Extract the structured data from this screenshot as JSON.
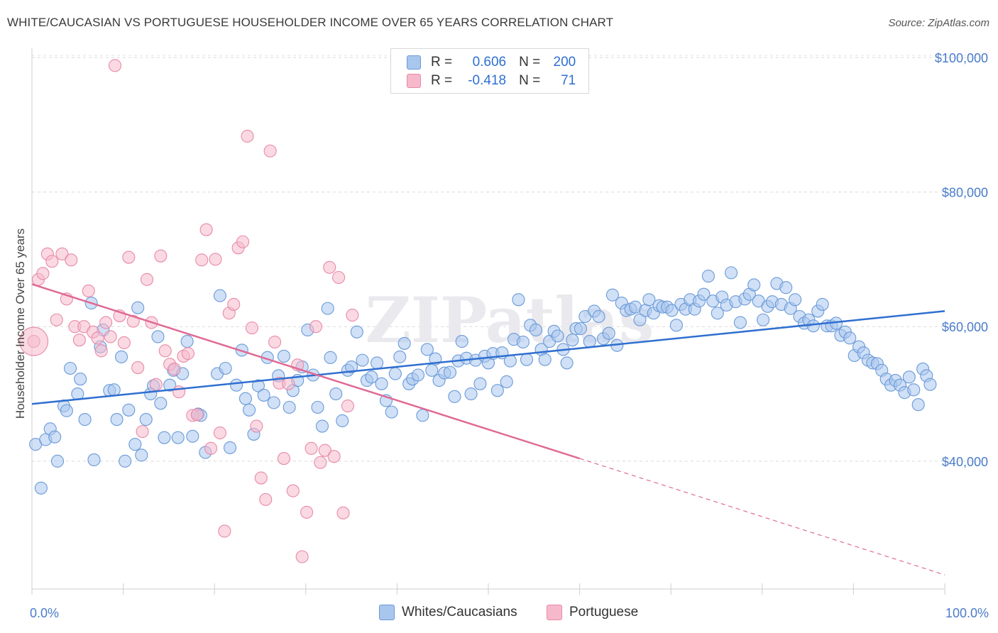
{
  "title": "WHITE/CAUCASIAN VS PORTUGUESE HOUSEHOLDER INCOME OVER 65 YEARS CORRELATION CHART",
  "source": "Source: ZipAtlas.com",
  "watermark": "ZIPatlas",
  "legend": {
    "r_label": "R =",
    "n_label": "N =",
    "rows": [
      {
        "r": "0.606",
        "n": "200",
        "fill": "#a9c6ee",
        "stroke": "#6a9ad8"
      },
      {
        "r": "-0.418",
        "n": "71",
        "fill": "#f6b9cc",
        "stroke": "#e88aa8"
      }
    ]
  },
  "bottom_legend": [
    {
      "label": "Whites/Caucasians",
      "fill": "#a9c6ee",
      "stroke": "#6a9ad8"
    },
    {
      "label": "Portuguese",
      "fill": "#f6b9cc",
      "stroke": "#e88aa8"
    }
  ],
  "chart_data": {
    "type": "scatter",
    "ylabel": "Householder Income Over 65 years",
    "x_tick_labels": [
      "0.0%",
      "100.0%"
    ],
    "y_tick_labels": [
      "$40,000",
      "$60,000",
      "$80,000",
      "$100,000"
    ],
    "xlim": [
      0,
      100
    ],
    "ylim": [
      21000,
      102000
    ],
    "y_ticks": [
      40000,
      60000,
      80000,
      100000
    ],
    "gridlines": [
      40000,
      60000,
      80000,
      100000
    ],
    "grid": "dashed horizontal",
    "series": [
      {
        "name": "Whites/Caucasians",
        "color": "#6a9ad8",
        "fill": "#a9c6ee",
        "trendline": {
          "x": [
            0,
            100
          ],
          "y": [
            48500,
            62300
          ],
          "color": "#2f6fd0"
        },
        "points": [
          [
            1.0,
            36000
          ],
          [
            0.4,
            42500
          ],
          [
            1.5,
            43200
          ],
          [
            2.0,
            44800
          ],
          [
            2.5,
            43600
          ],
          [
            2.8,
            40000
          ],
          [
            3.5,
            48200
          ],
          [
            3.8,
            47500
          ],
          [
            4.2,
            53800
          ],
          [
            5.0,
            50000
          ],
          [
            5.3,
            52200
          ],
          [
            5.8,
            46200
          ],
          [
            6.5,
            63500
          ],
          [
            6.8,
            40200
          ],
          [
            7.5,
            57000
          ],
          [
            7.8,
            59500
          ],
          [
            8.5,
            50500
          ],
          [
            9.0,
            50600
          ],
          [
            9.3,
            46200
          ],
          [
            9.8,
            55500
          ],
          [
            10.2,
            40000
          ],
          [
            10.6,
            47600
          ],
          [
            11.3,
            42500
          ],
          [
            11.6,
            62800
          ],
          [
            12.0,
            40900
          ],
          [
            12.5,
            46200
          ],
          [
            13.0,
            50000
          ],
          [
            13.3,
            51200
          ],
          [
            13.8,
            58500
          ],
          [
            14.1,
            48600
          ],
          [
            14.5,
            43500
          ],
          [
            15.1,
            51300
          ],
          [
            15.5,
            53500
          ],
          [
            16.0,
            43500
          ],
          [
            16.5,
            53000
          ],
          [
            17.0,
            57800
          ],
          [
            17.6,
            43700
          ],
          [
            18.2,
            47000
          ],
          [
            18.5,
            46800
          ],
          [
            19.0,
            41300
          ],
          [
            20.3,
            53000
          ],
          [
            20.6,
            64600
          ],
          [
            21.2,
            53800
          ],
          [
            21.7,
            42000
          ],
          [
            22.4,
            51300
          ],
          [
            23.0,
            56500
          ],
          [
            23.4,
            49300
          ],
          [
            23.8,
            47600
          ],
          [
            24.3,
            44000
          ],
          [
            24.8,
            51200
          ],
          [
            25.4,
            49800
          ],
          [
            25.8,
            55400
          ],
          [
            26.5,
            48700
          ],
          [
            27.0,
            52700
          ],
          [
            27.6,
            55600
          ],
          [
            28.2,
            48000
          ],
          [
            28.6,
            50500
          ],
          [
            29.1,
            52000
          ],
          [
            29.6,
            54000
          ],
          [
            30.2,
            59500
          ],
          [
            30.8,
            52800
          ],
          [
            31.3,
            48000
          ],
          [
            31.8,
            45200
          ],
          [
            32.4,
            62700
          ],
          [
            32.7,
            55400
          ],
          [
            33.3,
            50000
          ],
          [
            34.0,
            46000
          ],
          [
            34.6,
            53500
          ],
          [
            35.0,
            54000
          ],
          [
            35.6,
            59200
          ],
          [
            36.2,
            55000
          ],
          [
            36.7,
            52000
          ],
          [
            37.2,
            52500
          ],
          [
            37.8,
            54600
          ],
          [
            38.3,
            51500
          ],
          [
            38.8,
            49000
          ],
          [
            39.4,
            47300
          ],
          [
            39.8,
            53000
          ],
          [
            40.3,
            55500
          ],
          [
            40.8,
            57500
          ],
          [
            41.3,
            51500
          ],
          [
            41.7,
            52200
          ],
          [
            42.3,
            52800
          ],
          [
            42.8,
            46800
          ],
          [
            43.3,
            56600
          ],
          [
            43.8,
            53500
          ],
          [
            44.2,
            55200
          ],
          [
            44.6,
            52000
          ],
          [
            45.2,
            53100
          ],
          [
            45.8,
            53200
          ],
          [
            46.3,
            49600
          ],
          [
            46.7,
            54900
          ],
          [
            47.1,
            57800
          ],
          [
            47.6,
            55300
          ],
          [
            48.1,
            50000
          ],
          [
            48.6,
            55000
          ],
          [
            49.1,
            51500
          ],
          [
            49.6,
            55600
          ],
          [
            50.0,
            54600
          ],
          [
            50.5,
            56000
          ],
          [
            51.0,
            50500
          ],
          [
            51.5,
            56100
          ],
          [
            52.0,
            51800
          ],
          [
            52.4,
            54900
          ],
          [
            52.8,
            58100
          ],
          [
            53.3,
            64000
          ],
          [
            53.8,
            57700
          ],
          [
            54.2,
            55100
          ],
          [
            54.6,
            60200
          ],
          [
            55.2,
            59500
          ],
          [
            55.8,
            56600
          ],
          [
            56.2,
            55100
          ],
          [
            56.7,
            57800
          ],
          [
            57.2,
            59300
          ],
          [
            57.6,
            58600
          ],
          [
            58.2,
            56600
          ],
          [
            58.6,
            54600
          ],
          [
            59.2,
            58000
          ],
          [
            59.6,
            59700
          ],
          [
            60.1,
            59700
          ],
          [
            60.6,
            61500
          ],
          [
            61.1,
            57800
          ],
          [
            61.6,
            62300
          ],
          [
            62.1,
            61500
          ],
          [
            62.6,
            58200
          ],
          [
            63.2,
            59000
          ],
          [
            63.6,
            64700
          ],
          [
            64.1,
            57200
          ],
          [
            64.6,
            63500
          ],
          [
            65.1,
            62400
          ],
          [
            65.6,
            62600
          ],
          [
            66.1,
            62900
          ],
          [
            66.6,
            61000
          ],
          [
            67.2,
            62400
          ],
          [
            67.6,
            64000
          ],
          [
            68.1,
            62000
          ],
          [
            68.7,
            63100
          ],
          [
            69.1,
            62900
          ],
          [
            69.6,
            62900
          ],
          [
            70.1,
            62400
          ],
          [
            70.6,
            60200
          ],
          [
            71.1,
            63300
          ],
          [
            71.6,
            62600
          ],
          [
            72.1,
            64000
          ],
          [
            72.6,
            62600
          ],
          [
            73.1,
            63800
          ],
          [
            73.6,
            64800
          ],
          [
            74.1,
            67500
          ],
          [
            74.6,
            63800
          ],
          [
            75.1,
            62000
          ],
          [
            75.6,
            64400
          ],
          [
            76.1,
            63200
          ],
          [
            76.6,
            68000
          ],
          [
            77.1,
            63700
          ],
          [
            77.6,
            60600
          ],
          [
            78.1,
            64100
          ],
          [
            78.6,
            64800
          ],
          [
            79.1,
            66200
          ],
          [
            79.6,
            63800
          ],
          [
            80.1,
            61000
          ],
          [
            80.6,
            63000
          ],
          [
            81.1,
            63700
          ],
          [
            81.6,
            66400
          ],
          [
            82.1,
            63300
          ],
          [
            82.6,
            65800
          ],
          [
            83.1,
            62700
          ],
          [
            83.6,
            64000
          ],
          [
            84.1,
            61500
          ],
          [
            84.6,
            60500
          ],
          [
            85.1,
            61000
          ],
          [
            85.6,
            60100
          ],
          [
            86.1,
            62300
          ],
          [
            86.6,
            63300
          ],
          [
            87.1,
            60100
          ],
          [
            87.6,
            60100
          ],
          [
            88.1,
            60500
          ],
          [
            88.6,
            58700
          ],
          [
            89.1,
            59200
          ],
          [
            89.6,
            58300
          ],
          [
            90.1,
            55700
          ],
          [
            90.6,
            57000
          ],
          [
            91.1,
            56100
          ],
          [
            91.6,
            55000
          ],
          [
            92.1,
            54600
          ],
          [
            92.6,
            54500
          ],
          [
            93.1,
            53500
          ],
          [
            93.6,
            52200
          ],
          [
            94.1,
            51300
          ],
          [
            94.6,
            52000
          ],
          [
            95.1,
            51300
          ],
          [
            95.6,
            50200
          ],
          [
            96.1,
            52500
          ],
          [
            96.6,
            50600
          ],
          [
            97.1,
            48400
          ],
          [
            97.6,
            53700
          ],
          [
            98.0,
            52700
          ],
          [
            98.4,
            51400
          ]
        ]
      },
      {
        "name": "Portuguese",
        "color": "#e88aa8",
        "fill": "#f6b9cc",
        "trendline": {
          "x": [
            0,
            60
          ],
          "y": [
            66300,
            40400
          ],
          "dashed_to": {
            "x": 100,
            "y": 23100
          },
          "color": "#e06a94"
        },
        "points": [
          [
            0.2,
            57800
          ],
          [
            0.7,
            67000
          ],
          [
            1.2,
            67900
          ],
          [
            1.7,
            70800
          ],
          [
            2.2,
            69700
          ],
          [
            2.7,
            61000
          ],
          [
            3.3,
            70800
          ],
          [
            3.8,
            64100
          ],
          [
            4.3,
            69900
          ],
          [
            4.7,
            60000
          ],
          [
            5.2,
            58000
          ],
          [
            5.7,
            60000
          ],
          [
            6.2,
            65300
          ],
          [
            6.7,
            59200
          ],
          [
            7.2,
            58300
          ],
          [
            7.6,
            56400
          ],
          [
            8.1,
            60600
          ],
          [
            8.6,
            58500
          ],
          [
            9.1,
            98800
          ],
          [
            9.6,
            61600
          ],
          [
            10.1,
            57600
          ],
          [
            10.6,
            70300
          ],
          [
            11.1,
            60800
          ],
          [
            11.6,
            53900
          ],
          [
            12.1,
            44400
          ],
          [
            12.6,
            67000
          ],
          [
            13.1,
            60600
          ],
          [
            13.6,
            51400
          ],
          [
            14.1,
            70500
          ],
          [
            14.6,
            56400
          ],
          [
            15.1,
            54400
          ],
          [
            15.6,
            53700
          ],
          [
            16.1,
            50300
          ],
          [
            16.6,
            55600
          ],
          [
            17.1,
            56000
          ],
          [
            17.6,
            46800
          ],
          [
            18.1,
            46900
          ],
          [
            18.6,
            69900
          ],
          [
            19.1,
            74400
          ],
          [
            19.6,
            41900
          ],
          [
            20.1,
            70000
          ],
          [
            20.6,
            44200
          ],
          [
            21.1,
            29600
          ],
          [
            21.6,
            62000
          ],
          [
            22.1,
            63300
          ],
          [
            22.6,
            71700
          ],
          [
            23.1,
            72600
          ],
          [
            23.6,
            88300
          ],
          [
            24.1,
            59800
          ],
          [
            24.6,
            45200
          ],
          [
            25.1,
            37500
          ],
          [
            25.6,
            34300
          ],
          [
            26.1,
            86100
          ],
          [
            26.6,
            57700
          ],
          [
            27.1,
            51600
          ],
          [
            27.6,
            40400
          ],
          [
            28.1,
            51500
          ],
          [
            28.6,
            35600
          ],
          [
            29.1,
            54300
          ],
          [
            29.6,
            25800
          ],
          [
            30.1,
            32400
          ],
          [
            30.6,
            41900
          ],
          [
            31.1,
            60000
          ],
          [
            31.6,
            39800
          ],
          [
            32.1,
            41600
          ],
          [
            32.6,
            68800
          ],
          [
            33.1,
            40700
          ],
          [
            33.6,
            67300
          ],
          [
            34.1,
            32300
          ],
          [
            34.6,
            48200
          ],
          [
            35.1,
            61700
          ]
        ]
      }
    ]
  }
}
